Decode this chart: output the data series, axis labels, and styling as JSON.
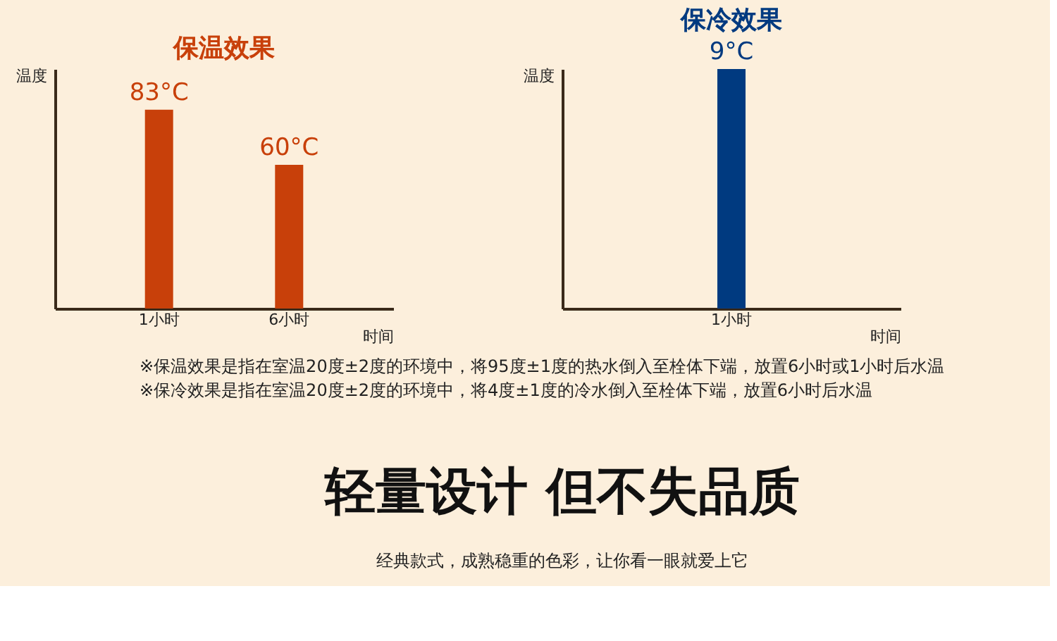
{
  "chart_data": [
    {
      "type": "bar",
      "title": "保温效果",
      "xlabel": "时间",
      "ylabel": "温度",
      "categories": [
        "1小时",
        "6小时"
      ],
      "series": [
        {
          "color": "#c8400a",
          "values": [
            83,
            60
          ],
          "value_labels": [
            "83°C",
            "60°C"
          ]
        }
      ],
      "ylim": [
        0,
        100
      ],
      "tick_labels": "x",
      "grid": false
    },
    {
      "type": "bar",
      "title": "保冷效果",
      "xlabel": "时间",
      "ylabel": "温度",
      "categories": [
        "1小时"
      ],
      "series": [
        {
          "color": "#003a80",
          "values": [
            9
          ],
          "value_labels": [
            "9°C"
          ]
        }
      ],
      "tick_labels": "x",
      "grid": false
    },
    {
      "type": "other",
      "annotations": [
        "※保温效果是指在室温20度±2度的环境中，将95度±1度的热水倒入至栓体下端，放置6小时或1小时后水温",
        "※保冷效果是指在室温20度±2度的环境中，将4度±1度的冷水倒入至栓体下端，放置6小时后水温",
        "轻量设计 但不失品质",
        "经典款式，成熟稳重的色彩，让你看一眼就爱上它"
      ]
    }
  ]
}
